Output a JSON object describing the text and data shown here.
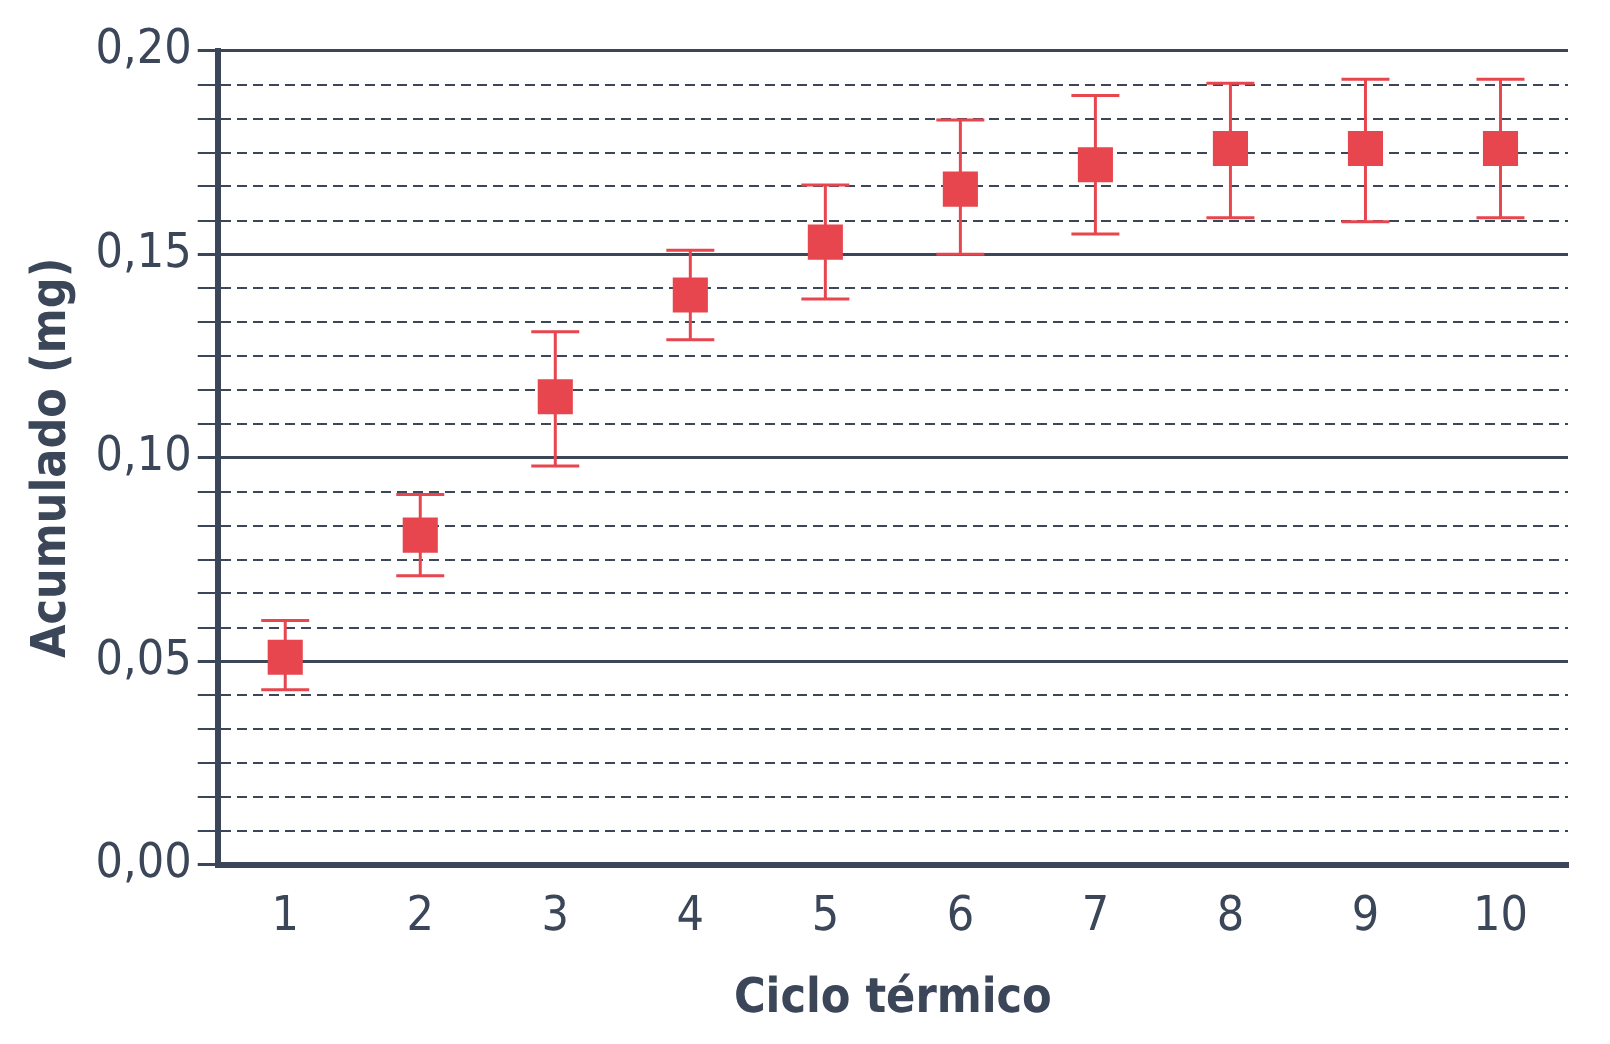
{
  "chart_data": {
    "type": "scatter",
    "xlabel": "Ciclo térmico",
    "ylabel": "Acumulado (mg)",
    "categories": [
      "1",
      "2",
      "3",
      "4",
      "5",
      "6",
      "7",
      "8",
      "9",
      "10"
    ],
    "series": [
      {
        "color": "#e8464f",
        "values": [
          0.051,
          0.081,
          0.115,
          0.14,
          0.153,
          0.166,
          0.172,
          0.176,
          0.176,
          0.176
        ],
        "errors": [
          [
            0.043,
            0.06
          ],
          [
            0.071,
            0.091
          ],
          [
            0.098,
            0.131
          ],
          [
            0.129,
            0.151
          ],
          [
            0.139,
            0.167
          ],
          [
            0.15,
            0.183
          ],
          [
            0.155,
            0.189
          ],
          [
            0.159,
            0.192
          ],
          [
            0.158,
            0.193
          ],
          [
            0.159,
            0.193
          ]
        ]
      }
    ],
    "ylim": [
      0,
      0.2
    ],
    "yticks": [
      {
        "value": 0,
        "label": "0,00"
      },
      {
        "value": 0.0083,
        "label": null
      },
      {
        "value": 0.0167,
        "label": null
      },
      {
        "value": 0.025,
        "label": null
      },
      {
        "value": 0.0333,
        "label": null
      },
      {
        "value": 0.0417,
        "label": null
      },
      {
        "value": 0.05,
        "label": "0,05"
      },
      {
        "value": 0.0583,
        "label": null
      },
      {
        "value": 0.0667,
        "label": null
      },
      {
        "value": 0.075,
        "label": null
      },
      {
        "value": 0.0833,
        "label": null
      },
      {
        "value": 0.0917,
        "label": null
      },
      {
        "value": 0.1,
        "label": "0,10"
      },
      {
        "value": 0.1083,
        "label": null
      },
      {
        "value": 0.1167,
        "label": null
      },
      {
        "value": 0.125,
        "label": null
      },
      {
        "value": 0.1333,
        "label": null
      },
      {
        "value": 0.1417,
        "label": null
      },
      {
        "value": 0.15,
        "label": "0,15"
      },
      {
        "value": 0.1583,
        "label": null
      },
      {
        "value": 0.1667,
        "label": null
      },
      {
        "value": 0.175,
        "label": null
      },
      {
        "value": 0.1833,
        "label": null
      },
      {
        "value": 0.1917,
        "label": null
      },
      {
        "value": 0.2,
        "label": "0,20"
      }
    ],
    "grid": "y",
    "legend": false,
    "marker": "square"
  }
}
